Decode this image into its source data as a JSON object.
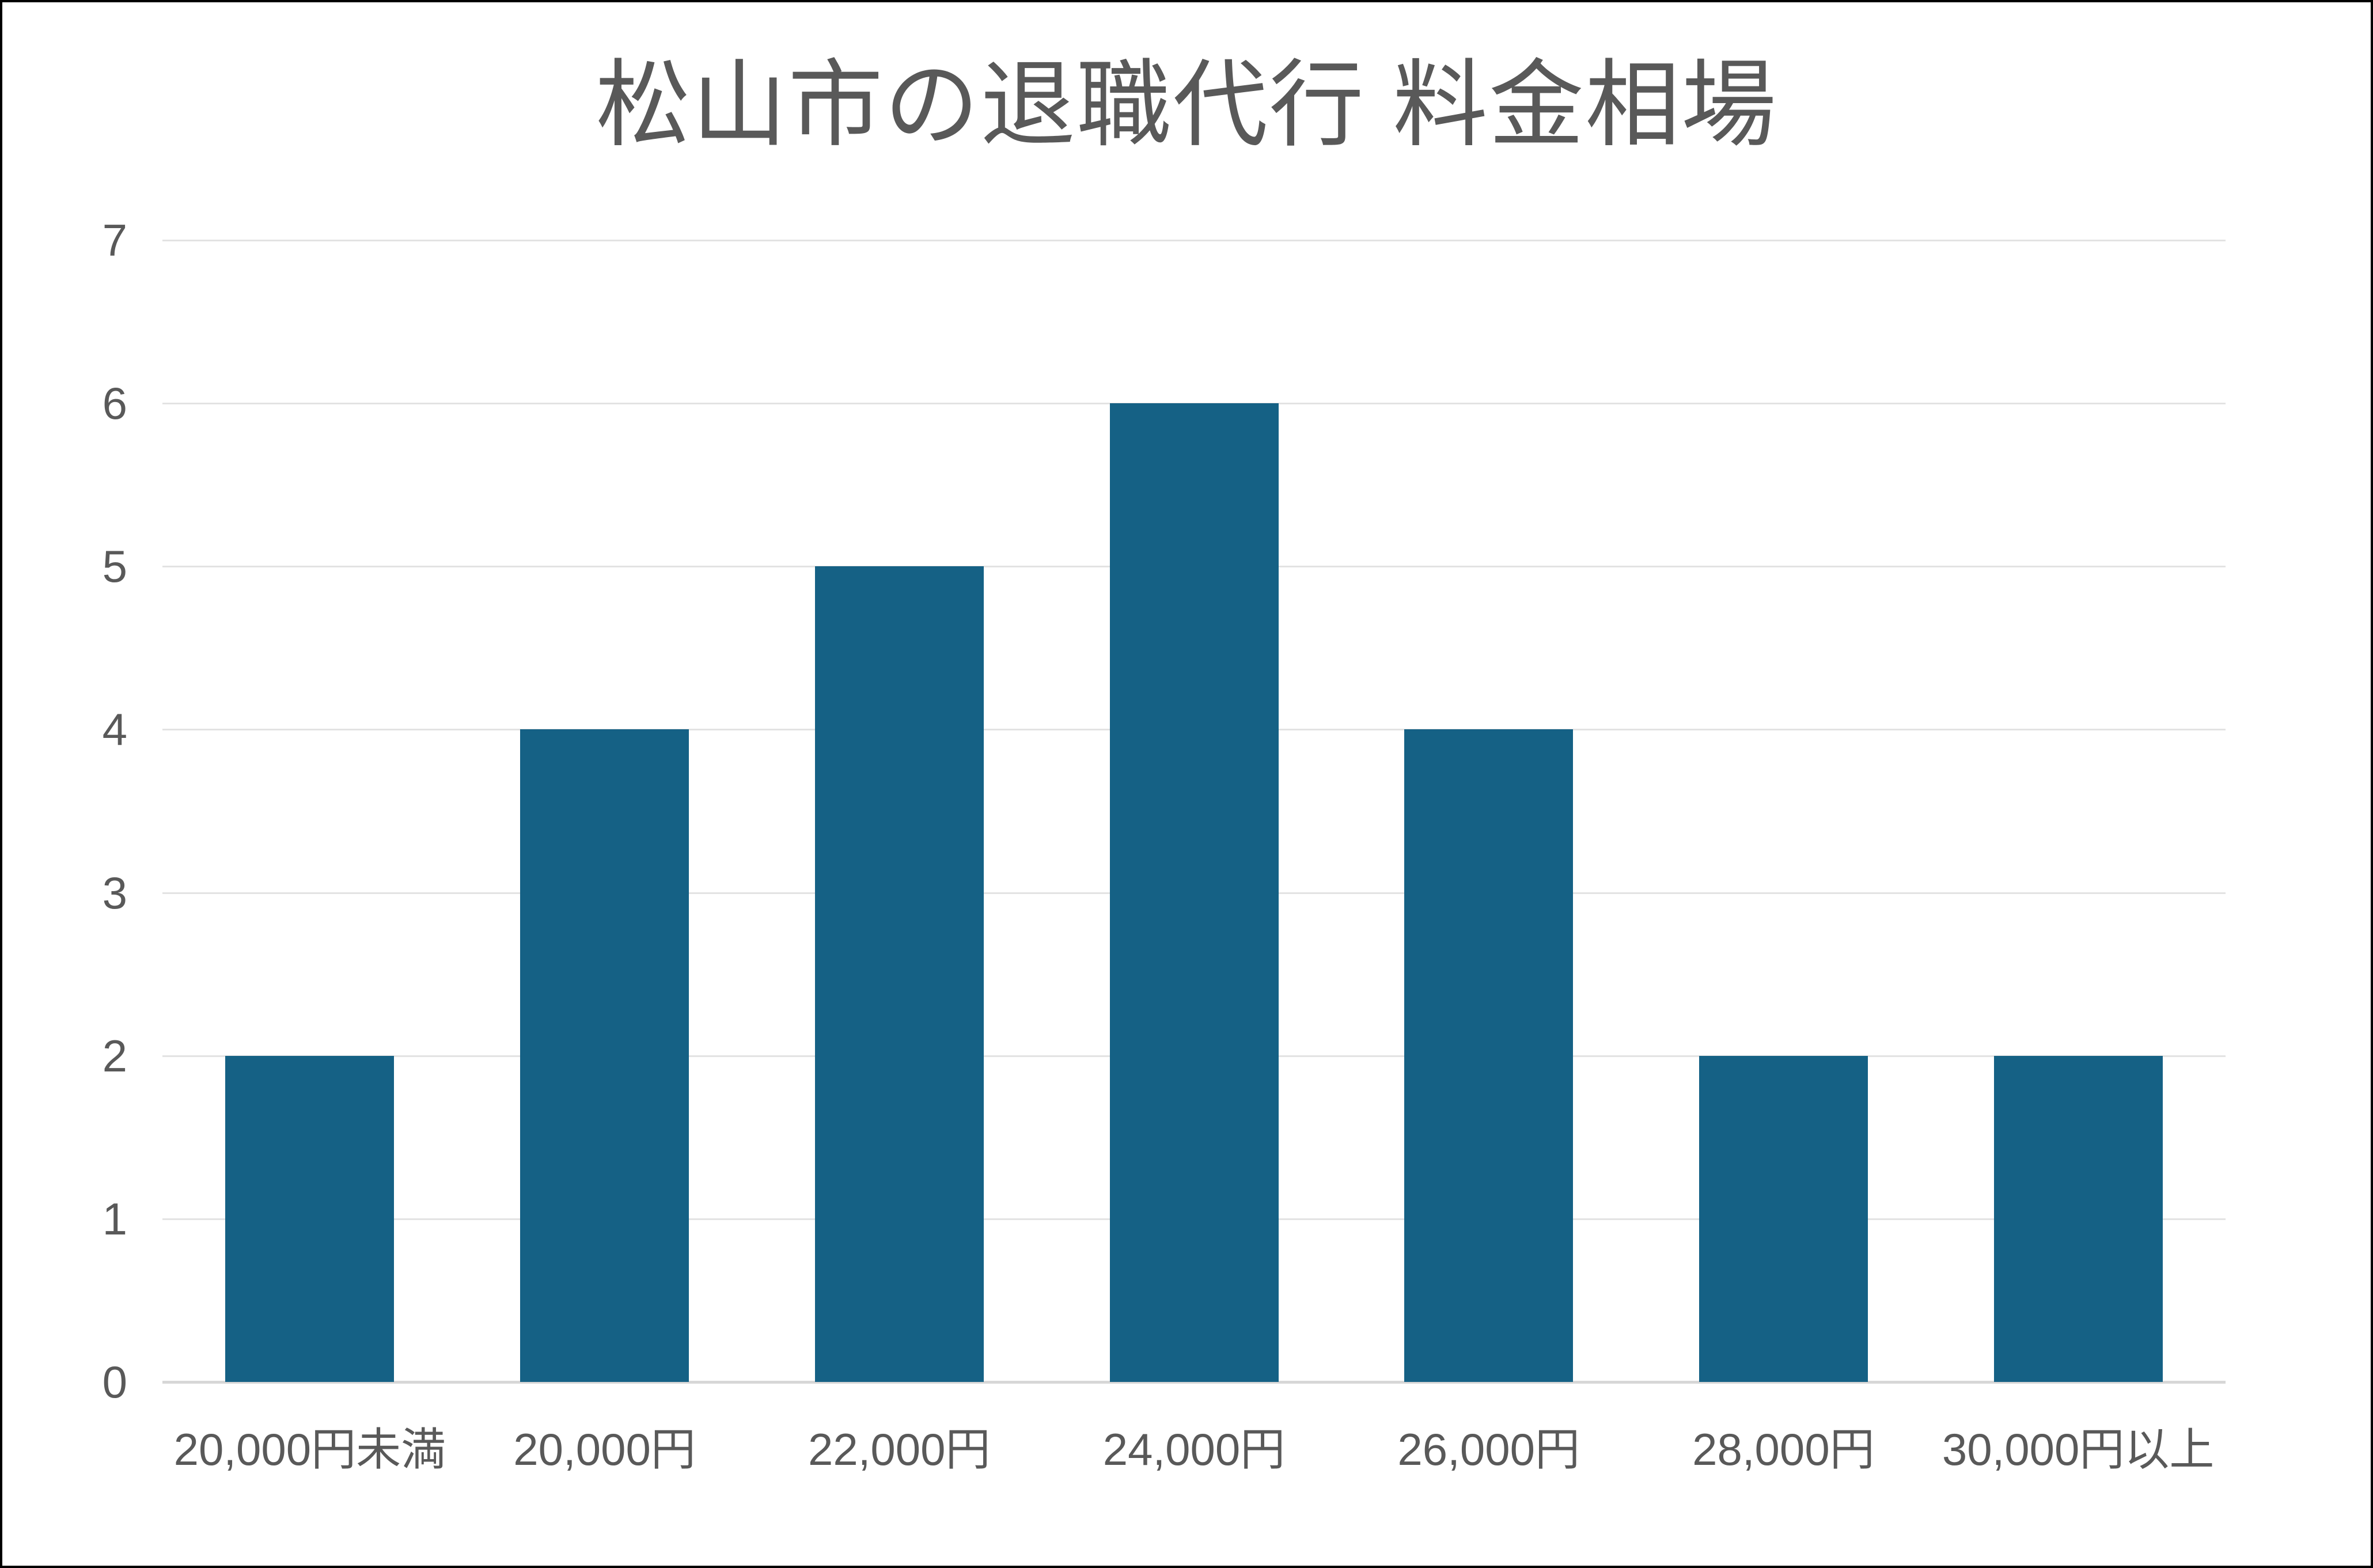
{
  "chart_data": {
    "type": "bar",
    "title": "松山市の退職代行 料金相場",
    "categories": [
      "20,000円未満",
      "20,000円",
      "22,000円",
      "24,000円",
      "26,000円",
      "28,000円",
      "30,000円以上"
    ],
    "values": [
      2,
      4,
      5,
      6,
      4,
      2,
      2
    ],
    "xlabel": "",
    "ylabel": "",
    "ylim": [
      0,
      7
    ],
    "yticks": [
      0,
      1,
      2,
      3,
      4,
      5,
      6,
      7
    ],
    "grid": true,
    "legend_position": "none",
    "colors": {
      "bar": "#156185",
      "gridline": "#E3E3E3",
      "axis_line": "#D7D7D7",
      "text": "#595959",
      "background": "#FFFFFF",
      "frame_border": "#000000"
    }
  }
}
